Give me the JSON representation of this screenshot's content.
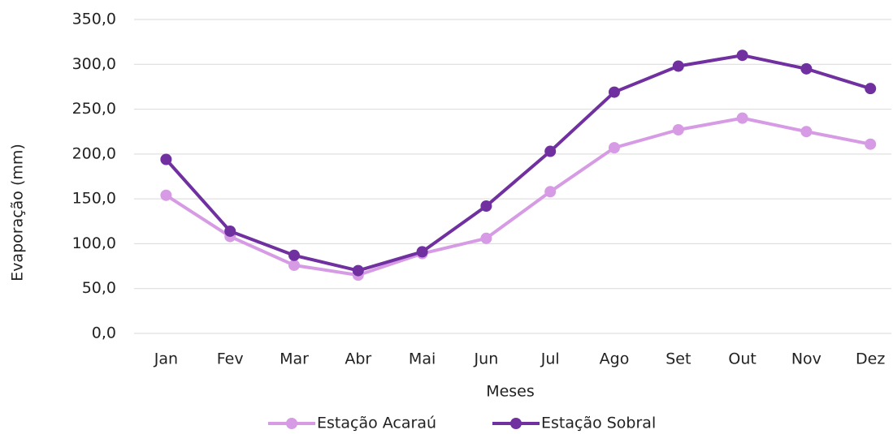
{
  "chart_data": {
    "type": "line",
    "x_label": "Meses",
    "y_label": "Evaporação (mm)",
    "categories": [
      "Jan",
      "Fev",
      "Mar",
      "Abr",
      "Mai",
      "Jun",
      "Jul",
      "Ago",
      "Set",
      "Out",
      "Nov",
      "Dez"
    ],
    "series": [
      {
        "name": "Estação Acaraú",
        "color": "#d69be4",
        "values": [
          154,
          108,
          76,
          65,
          89,
          106,
          158,
          207,
          227,
          240,
          225,
          211
        ]
      },
      {
        "name": "Estação Sobral",
        "color": "#7030a0",
        "values": [
          194,
          114,
          87,
          70,
          91,
          142,
          203,
          269,
          298,
          310,
          295,
          273
        ]
      }
    ],
    "ylim": [
      0,
      350
    ],
    "yticks": [
      {
        "value": 0,
        "label": "0,0"
      },
      {
        "value": 50,
        "label": "50,0"
      },
      {
        "value": 100,
        "label": "100,0"
      },
      {
        "value": 150,
        "label": "150,0"
      },
      {
        "value": 200,
        "label": "200,0"
      },
      {
        "value": 250,
        "label": "250,0"
      },
      {
        "value": 300,
        "label": "300,0"
      },
      {
        "value": 350,
        "label": "350,0"
      }
    ],
    "grid": true,
    "legend": "bottom"
  }
}
